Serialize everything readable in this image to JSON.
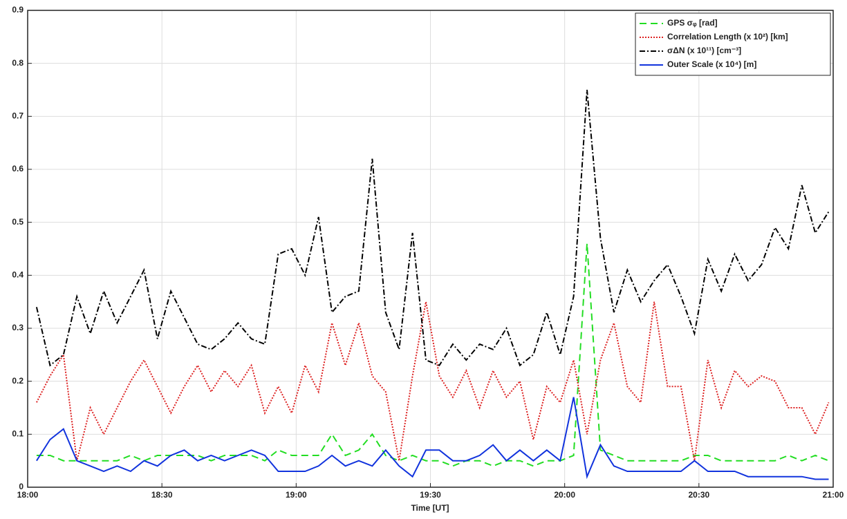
{
  "chart_data": {
    "type": "line",
    "x_label": "Time [UT]",
    "x": [
      "18:02",
      "18:05",
      "18:08",
      "18:11",
      "18:14",
      "18:17",
      "18:20",
      "18:23",
      "18:26",
      "18:29",
      "18:32",
      "18:35",
      "18:38",
      "18:41",
      "18:44",
      "18:47",
      "18:50",
      "18:53",
      "18:56",
      "18:59",
      "19:02",
      "19:05",
      "19:08",
      "19:11",
      "19:14",
      "19:17",
      "19:20",
      "19:23",
      "19:26",
      "19:29",
      "19:32",
      "19:35",
      "19:38",
      "19:41",
      "19:44",
      "19:47",
      "19:50",
      "19:53",
      "19:56",
      "19:59",
      "20:02",
      "20:05",
      "20:08",
      "20:11",
      "20:14",
      "20:17",
      "20:20",
      "20:23",
      "20:26",
      "20:29",
      "20:32",
      "20:35",
      "20:38",
      "20:41",
      "20:44",
      "20:47",
      "20:50",
      "20:53",
      "20:56",
      "20:59"
    ],
    "xlim": [
      "18:00",
      "21:00"
    ],
    "xticks": [
      "18:00",
      "18:30",
      "19:00",
      "19:30",
      "20:00",
      "20:30",
      "21:00"
    ],
    "ylim": [
      0,
      0.9
    ],
    "yticks": [
      0,
      0.1,
      0.2,
      0.3,
      0.4,
      0.5,
      0.6,
      0.7,
      0.8,
      0.9
    ],
    "grid": true,
    "legend": "top-right",
    "series": [
      {
        "name": "GPS σᵩ [rad]",
        "color": "#22dd22",
        "dash": "10,6",
        "values": [
          0.06,
          0.06,
          0.05,
          0.05,
          0.05,
          0.05,
          0.05,
          0.06,
          0.05,
          0.06,
          0.06,
          0.06,
          0.06,
          0.05,
          0.06,
          0.06,
          0.06,
          0.05,
          0.07,
          0.06,
          0.06,
          0.06,
          0.1,
          0.06,
          0.07,
          0.1,
          0.06,
          0.05,
          0.06,
          0.05,
          0.05,
          0.04,
          0.05,
          0.05,
          0.04,
          0.05,
          0.05,
          0.04,
          0.05,
          0.05,
          0.06,
          0.46,
          0.07,
          0.06,
          0.05,
          0.05,
          0.05,
          0.05,
          0.05,
          0.06,
          0.06,
          0.05,
          0.05,
          0.05,
          0.05,
          0.05,
          0.06,
          0.05,
          0.06,
          0.05
        ]
      },
      {
        "name": "Correlation Length (x 10²) [km]",
        "color": "#dd2222",
        "dash": "2,2",
        "values": [
          0.16,
          0.21,
          0.25,
          0.05,
          0.15,
          0.1,
          0.15,
          0.2,
          0.24,
          0.19,
          0.14,
          0.19,
          0.23,
          0.18,
          0.22,
          0.19,
          0.23,
          0.14,
          0.19,
          0.14,
          0.23,
          0.18,
          0.31,
          0.23,
          0.31,
          0.21,
          0.18,
          0.05,
          0.21,
          0.35,
          0.21,
          0.17,
          0.22,
          0.15,
          0.22,
          0.17,
          0.2,
          0.09,
          0.19,
          0.16,
          0.24,
          0.1,
          0.24,
          0.31,
          0.19,
          0.16,
          0.35,
          0.19,
          0.19,
          0.05,
          0.24,
          0.15,
          0.22,
          0.19,
          0.21,
          0.2,
          0.15,
          0.15,
          0.1,
          0.16
        ]
      },
      {
        "name": "σΔN (x 10¹¹) [cm⁻³]",
        "color": "#000000",
        "dash": "8,3,2,3",
        "values": [
          0.34,
          0.23,
          0.25,
          0.36,
          0.29,
          0.37,
          0.31,
          0.36,
          0.41,
          0.28,
          0.37,
          0.32,
          0.27,
          0.26,
          0.28,
          0.31,
          0.28,
          0.27,
          0.44,
          0.45,
          0.4,
          0.51,
          0.33,
          0.36,
          0.37,
          0.62,
          0.33,
          0.26,
          0.48,
          0.24,
          0.23,
          0.27,
          0.24,
          0.27,
          0.26,
          0.3,
          0.23,
          0.25,
          0.33,
          0.25,
          0.36,
          0.75,
          0.47,
          0.33,
          0.41,
          0.35,
          0.39,
          0.42,
          0.36,
          0.29,
          0.43,
          0.37,
          0.44,
          0.39,
          0.42,
          0.49,
          0.45,
          0.57,
          0.48,
          0.52
        ]
      },
      {
        "name": "Outer Scale (x 10⁴) [m]",
        "color": "#1133dd",
        "dash": "none",
        "values": [
          0.05,
          0.09,
          0.11,
          0.05,
          0.04,
          0.03,
          0.04,
          0.03,
          0.05,
          0.04,
          0.06,
          0.07,
          0.05,
          0.06,
          0.05,
          0.06,
          0.07,
          0.06,
          0.03,
          0.03,
          0.03,
          0.04,
          0.06,
          0.04,
          0.05,
          0.04,
          0.07,
          0.04,
          0.02,
          0.07,
          0.07,
          0.05,
          0.05,
          0.06,
          0.08,
          0.05,
          0.07,
          0.05,
          0.07,
          0.05,
          0.17,
          0.02,
          0.08,
          0.04,
          0.03,
          0.03,
          0.03,
          0.03,
          0.03,
          0.05,
          0.03,
          0.03,
          0.03,
          0.02,
          0.02,
          0.02,
          0.02,
          0.02,
          0.015,
          0.015
        ]
      }
    ]
  }
}
